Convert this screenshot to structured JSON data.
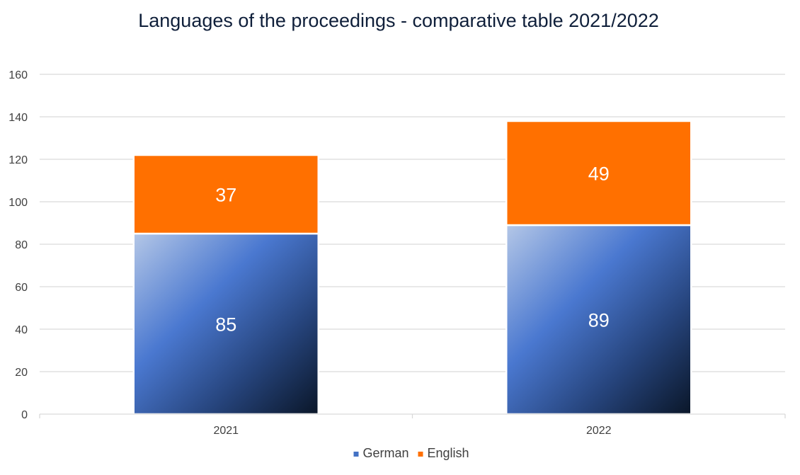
{
  "chart_data": {
    "type": "bar",
    "stacked": true,
    "title": "Languages of the proceedings - comparative table  2021/2022",
    "categories": [
      "2021",
      "2022"
    ],
    "series": [
      {
        "name": "German",
        "values": [
          85,
          89
        ],
        "color": "#4472c4"
      },
      {
        "name": "English",
        "values": [
          37,
          49
        ],
        "color": "#ff7000"
      }
    ],
    "ylim": [
      0,
      160
    ],
    "yticks": [
      "0",
      "20",
      "40",
      "60",
      "80",
      "100",
      "120",
      "140",
      "160"
    ],
    "grid": true,
    "legend": "bottom",
    "data_labels": true
  }
}
